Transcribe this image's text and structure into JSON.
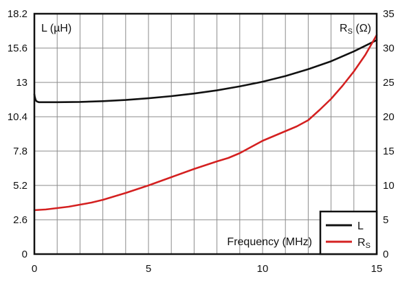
{
  "chart_data": {
    "type": "line",
    "xlabel": "Frequency (MHz)",
    "xlim": [
      0,
      15
    ],
    "x_ticks": [
      "0",
      "5",
      "10",
      "15"
    ],
    "left_axis": {
      "label": "L (µH)",
      "ylim": [
        0,
        18.2
      ],
      "ticks": [
        "0",
        "2.6",
        "5.2",
        "7.8",
        "10.4",
        "13",
        "15.6",
        "18.2"
      ]
    },
    "right_axis": {
      "label_main": "R",
      "label_sub": "S",
      "label_rest": " (Ω)",
      "ylim": [
        0,
        35
      ],
      "ticks": [
        "0",
        "5",
        "10",
        "15",
        "20",
        "25",
        "30",
        "35"
      ]
    },
    "grid": true,
    "legend_position": "bottom-right",
    "series": [
      {
        "name": "L",
        "axis": "left",
        "color": "#111111",
        "x": [
          0,
          0.02,
          0.05,
          0.08,
          0.12,
          0.2,
          0.5,
          1,
          2,
          3,
          4,
          5,
          6,
          7,
          8,
          9,
          10,
          11,
          12,
          13,
          14,
          15
        ],
        "y": [
          12.1,
          11.9,
          11.7,
          11.6,
          11.55,
          11.5,
          11.5,
          11.5,
          11.52,
          11.58,
          11.67,
          11.8,
          11.96,
          12.16,
          12.4,
          12.7,
          13.05,
          13.48,
          14.0,
          14.6,
          15.35,
          16.2
        ]
      },
      {
        "name": "R",
        "name_sub": "S",
        "axis": "right",
        "color": "#d42020",
        "x": [
          0,
          0.5,
          1,
          1.5,
          2,
          2.5,
          3,
          4,
          5,
          6,
          7,
          8,
          8.5,
          9,
          9.5,
          10,
          10.5,
          11,
          11.5,
          12,
          12.5,
          13,
          13.5,
          14,
          14.5,
          15
        ],
        "y": [
          6.4,
          6.5,
          6.7,
          6.9,
          7.2,
          7.5,
          7.9,
          8.9,
          10.0,
          11.2,
          12.4,
          13.5,
          14.0,
          14.7,
          15.6,
          16.5,
          17.2,
          17.9,
          18.6,
          19.5,
          21.0,
          22.6,
          24.5,
          26.6,
          29.0,
          31.9
        ]
      }
    ]
  }
}
